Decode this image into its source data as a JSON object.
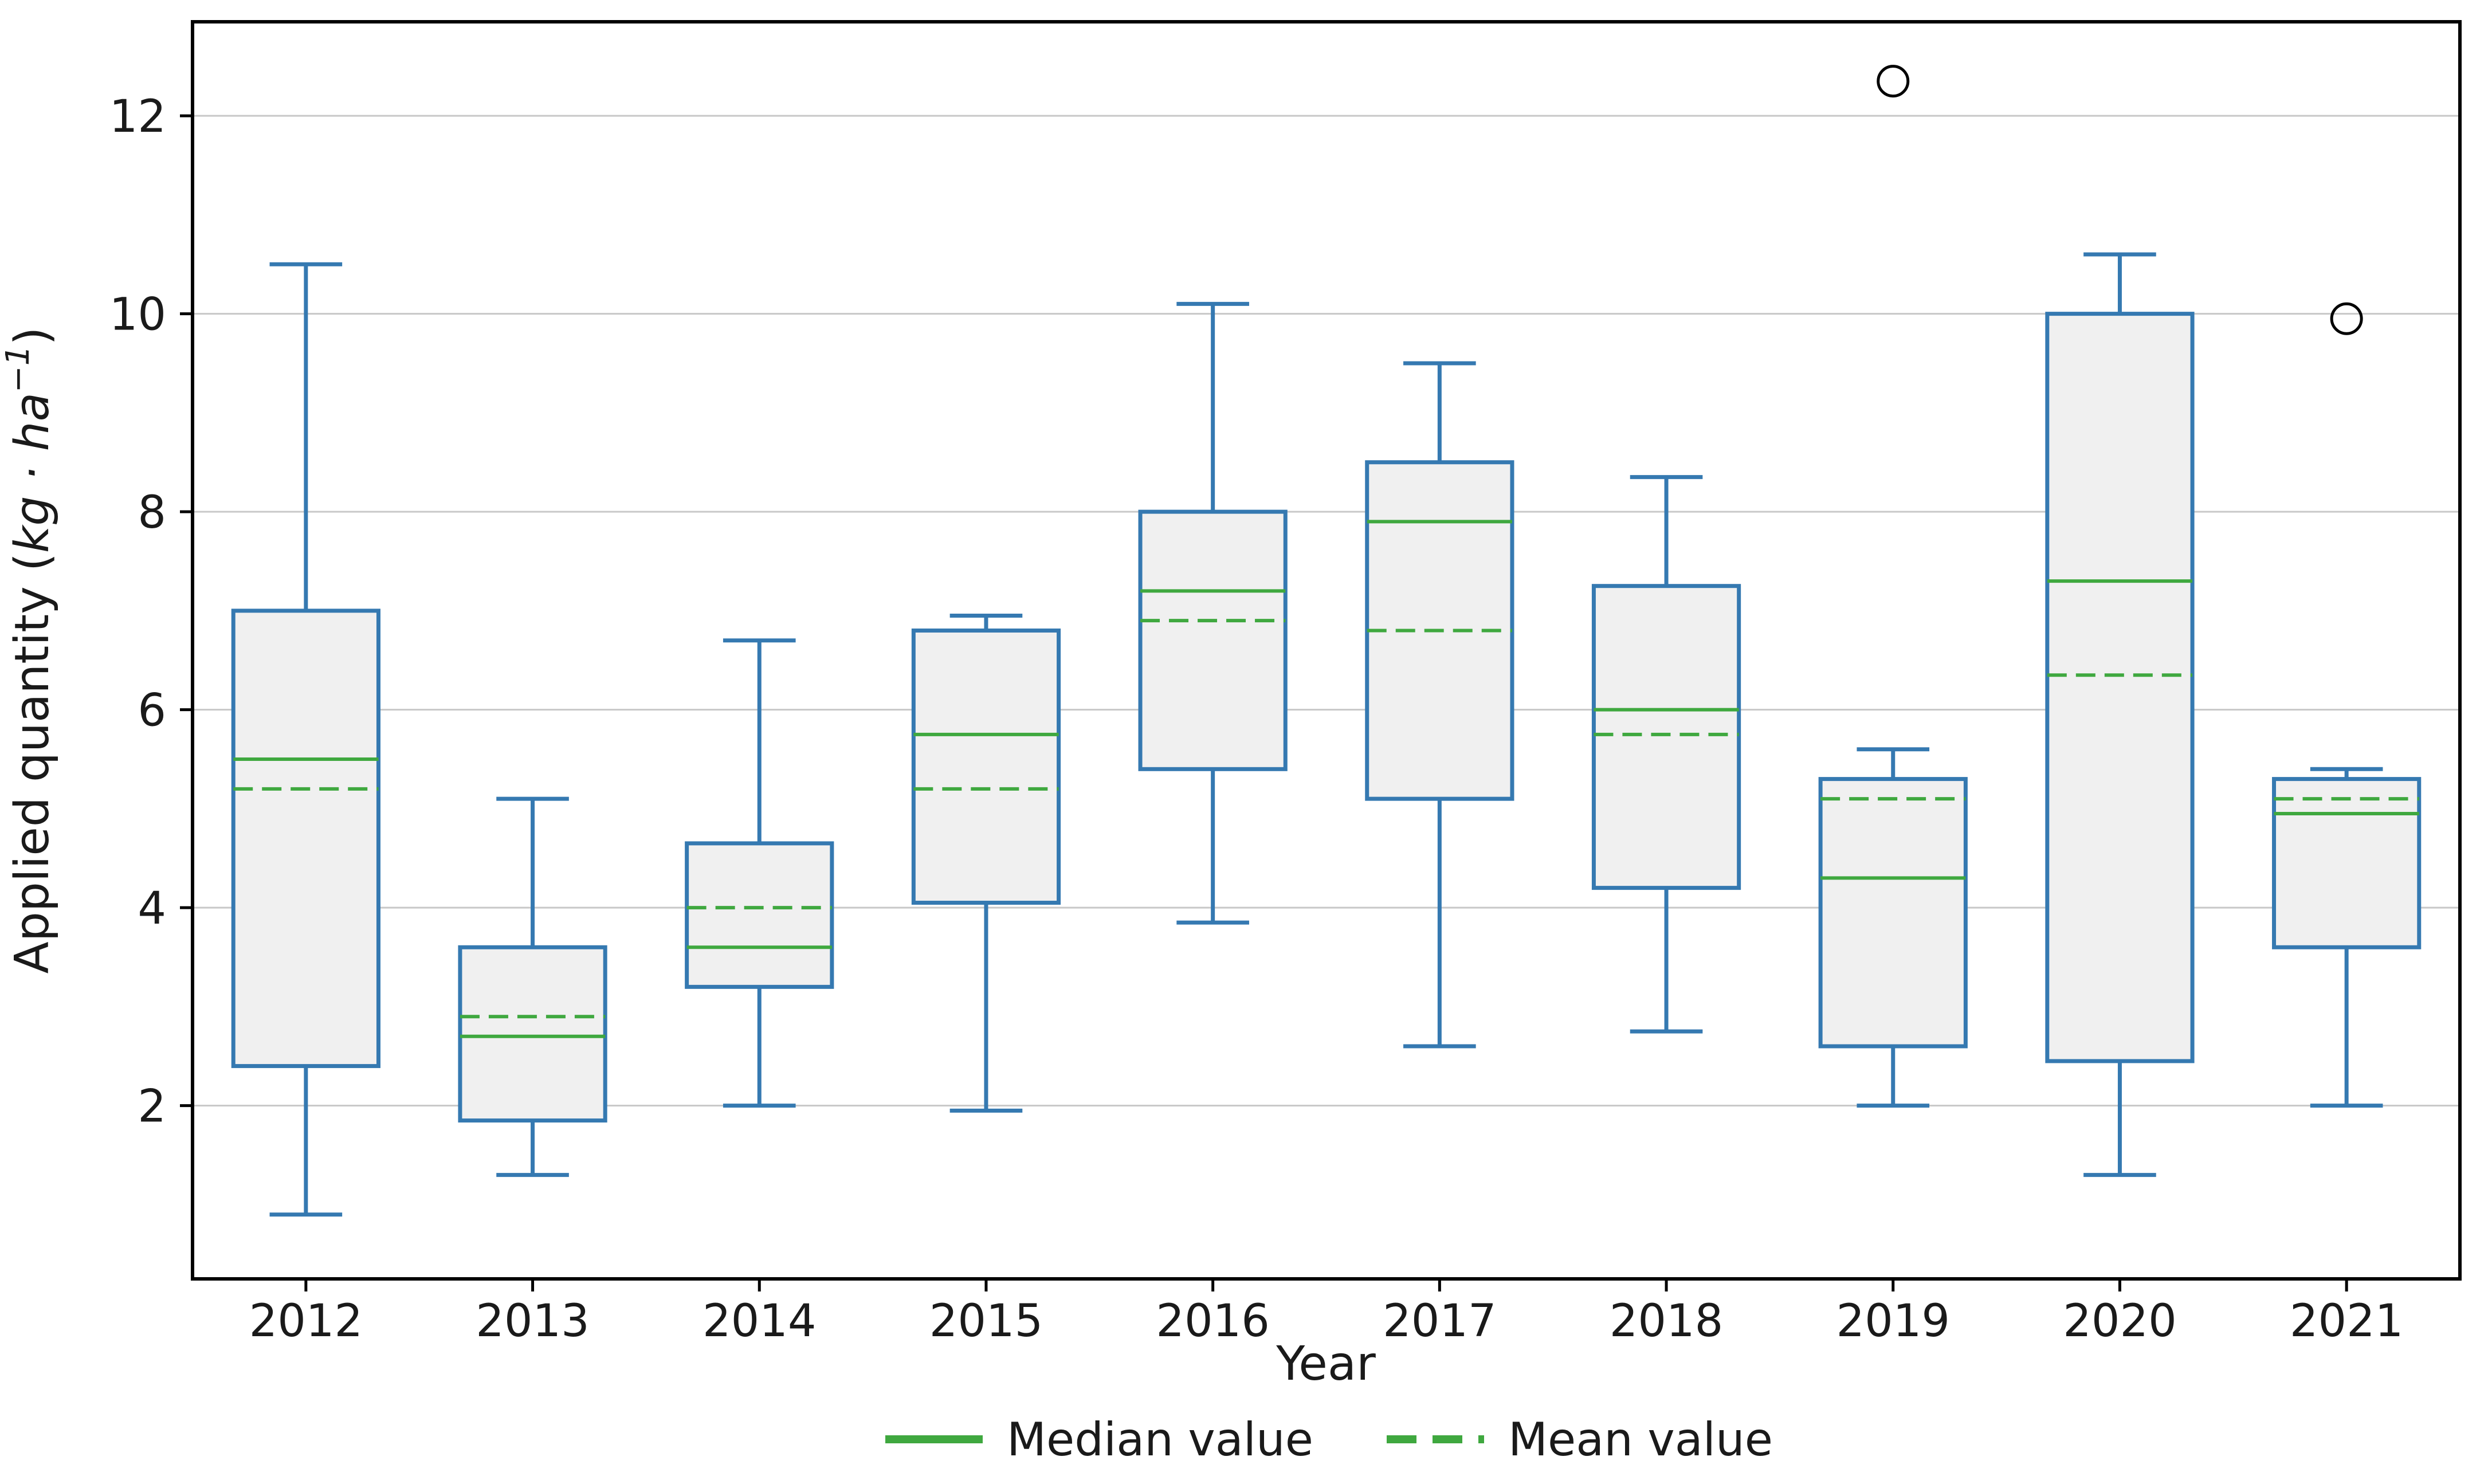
{
  "chart_data": {
    "type": "boxplot",
    "title": "",
    "xlabel": "Year",
    "ylabel": "Applied quantity (kg·ha⁻¹)",
    "ylabel_parts": {
      "prefix": "Applied quantity (",
      "italic": "kg · ha",
      "sup": "−1",
      "suffix": ")"
    },
    "categories": [
      "2012",
      "2013",
      "2014",
      "2015",
      "2016",
      "2017",
      "2018",
      "2019",
      "2020",
      "2021"
    ],
    "yticks": [
      2,
      4,
      6,
      8,
      10,
      12
    ],
    "ylim": [
      0.25,
      12.95
    ],
    "grid": "horizontal",
    "legend_position": "bottom-center",
    "series": [
      {
        "year": "2012",
        "whisker_low": 0.9,
        "q1": 2.4,
        "median": 5.5,
        "mean": 5.2,
        "q3": 7.0,
        "whisker_high": 10.5,
        "outliers": []
      },
      {
        "year": "2013",
        "whisker_low": 1.3,
        "q1": 1.85,
        "median": 2.7,
        "mean": 2.9,
        "q3": 3.6,
        "whisker_high": 5.1,
        "outliers": []
      },
      {
        "year": "2014",
        "whisker_low": 2.0,
        "q1": 3.2,
        "median": 3.6,
        "mean": 4.0,
        "q3": 4.65,
        "whisker_high": 6.7,
        "outliers": []
      },
      {
        "year": "2015",
        "whisker_low": 1.95,
        "q1": 4.05,
        "median": 5.75,
        "mean": 5.2,
        "q3": 6.8,
        "whisker_high": 6.95,
        "outliers": []
      },
      {
        "year": "2016",
        "whisker_low": 3.85,
        "q1": 5.4,
        "median": 7.2,
        "mean": 6.9,
        "q3": 8.0,
        "whisker_high": 10.1,
        "outliers": []
      },
      {
        "year": "2017",
        "whisker_low": 2.6,
        "q1": 5.1,
        "median": 7.9,
        "mean": 6.8,
        "q3": 8.5,
        "whisker_high": 9.5,
        "outliers": []
      },
      {
        "year": "2018",
        "whisker_low": 2.75,
        "q1": 4.2,
        "median": 6.0,
        "mean": 5.75,
        "q3": 7.25,
        "whisker_high": 8.35,
        "outliers": []
      },
      {
        "year": "2019",
        "whisker_low": 2.0,
        "q1": 2.6,
        "median": 4.3,
        "mean": 5.1,
        "q3": 5.3,
        "whisker_high": 5.6,
        "outliers": [
          12.35
        ]
      },
      {
        "year": "2020",
        "whisker_low": 1.3,
        "q1": 2.45,
        "median": 7.3,
        "mean": 6.35,
        "q3": 10.0,
        "whisker_high": 10.6,
        "outliers": []
      },
      {
        "year": "2021",
        "whisker_low": 2.0,
        "q1": 3.6,
        "median": 4.95,
        "mean": 5.1,
        "q3": 5.3,
        "whisker_high": 5.4,
        "outliers": [
          9.95
        ]
      }
    ],
    "legend": [
      {
        "label": "Median value",
        "style": "solid"
      },
      {
        "label": "Mean value",
        "style": "dashed"
      }
    ],
    "colors": {
      "box_edge": "#3579b1",
      "box_fill": "#f0f0f0",
      "whisker": "#3579b1",
      "median_line": "#3fa83f",
      "mean_line": "#3fa83f",
      "gridline": "#c8c8c8",
      "spine": "#000000",
      "outlier_edge": "#000000",
      "background": "#ffffff"
    }
  }
}
